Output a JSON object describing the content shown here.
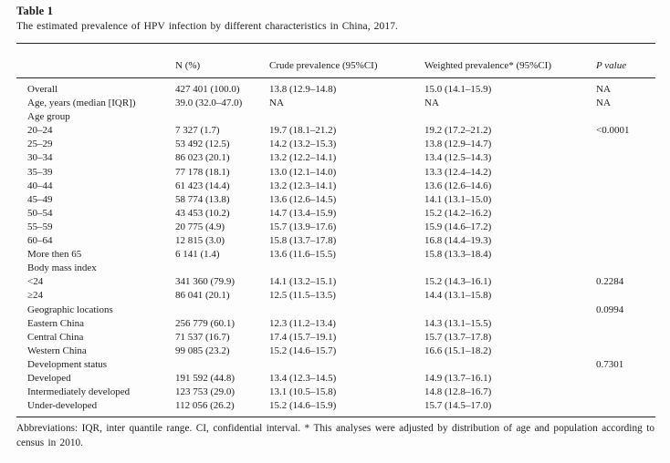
{
  "page": {
    "title": "Table 1",
    "caption": "The estimated prevalence of HPV infection by different characteristics in China, 2017.",
    "footnote": "Abbreviations: IQR, inter quantile range. CI, confidential interval. * This analyses were adjusted by distribution of age and population according to census in 2010."
  },
  "colors": {
    "background": "#fdfdfd",
    "text": "#1e1e1e",
    "rule": "#242424"
  },
  "table": {
    "columns": [
      "",
      "N (%)",
      "Crude prevalence (95%CI)",
      "Weighted prevalence* (95%CI)",
      "P value"
    ],
    "column_keys": [
      "label",
      "n",
      "crude",
      "weighted",
      "p"
    ],
    "rows": [
      [
        "Overall",
        "427 401 (100.0)",
        "13.8 (12.9–14.8)",
        "15.0 (14.1–15.9)",
        "NA"
      ],
      [
        "Age, years (median [IQR])",
        "39.0 (32.0–47.0)",
        "NA",
        "NA",
        "NA"
      ],
      [
        "Age group",
        "",
        "",
        "",
        ""
      ],
      [
        "20–24",
        "7 327 (1.7)",
        "19.7 (18.1–21.2)",
        "19.2 (17.2–21.2)",
        "<0.0001"
      ],
      [
        "25–29",
        "53 492 (12.5)",
        "14.2 (13.2–15.3)",
        "13.8 (12.9–14.7)",
        ""
      ],
      [
        "30–34",
        "86 023 (20.1)",
        "13.2 (12.2–14.1)",
        "13.4 (12.5–14.3)",
        ""
      ],
      [
        "35–39",
        "77 178 (18.1)",
        "13.0 (12.1–14.0)",
        "13.3 (12.4–14.2)",
        ""
      ],
      [
        "40–44",
        "61 423 (14.4)",
        "13.2 (12.3–14.1)",
        "13.6 (12.6–14.6)",
        ""
      ],
      [
        "45–49",
        "58 774 (13.8)",
        "13.6 (12.6–14.5)",
        "14.1 (13.1–15.0)",
        ""
      ],
      [
        "50–54",
        "43 453 (10.2)",
        "14.7 (13.4–15.9)",
        "15.2 (14.2–16.2)",
        ""
      ],
      [
        "55–59",
        "20 775 (4.9)",
        "15.7 (13.9–17.6)",
        "15.9 (14.6–17.2)",
        ""
      ],
      [
        "60–64",
        "12 815 (3.0)",
        "15.8 (13.7–17.8)",
        "16.8 (14.4–19.3)",
        ""
      ],
      [
        "More then 65",
        "6 141 (1.4)",
        "13.6 (11.6–15.5)",
        "15.8 (13.3–18.4)",
        ""
      ],
      [
        "Body mass index",
        "",
        "",
        "",
        ""
      ],
      [
        "<24",
        "341 360 (79.9)",
        "14.1 (13.2–15.1)",
        "15.2 (14.3–16.1)",
        "0.2284"
      ],
      [
        "≥24",
        "86 041 (20.1)",
        "12.5 (11.5–13.5)",
        "14.4 (13.1–15.8)",
        ""
      ],
      [
        "Geographic locations",
        "",
        "",
        "",
        "0.0994"
      ],
      [
        "Eastern China",
        "256 779 (60.1)",
        "12.3 (11.2–13.4)",
        "14.3 (13.1–15.5)",
        ""
      ],
      [
        "Central China",
        "71 537 (16.7)",
        "17.4 (15.7–19.1)",
        "15.7 (13.7–17.8)",
        ""
      ],
      [
        "Western China",
        "99 085 (23.2)",
        "15.2 (14.6–15.7)",
        "16.6 (15.1–18.2)",
        ""
      ],
      [
        "Development status",
        "",
        "",
        "",
        "0.7301"
      ],
      [
        "Developed",
        "191 592 (44.8)",
        "13.4 (12.3–14.5)",
        "14.9 (13.7–16.1)",
        ""
      ],
      [
        "Intermediately developed",
        "123 753 (29.0)",
        "13.1 (10.5–15.8)",
        "14.8 (12.8–16.7)",
        ""
      ],
      [
        "Under-developed",
        "112 056 (26.2)",
        "15.2 (14.6–15.9)",
        "15.7 (14.5–17.0)",
        ""
      ]
    ]
  }
}
